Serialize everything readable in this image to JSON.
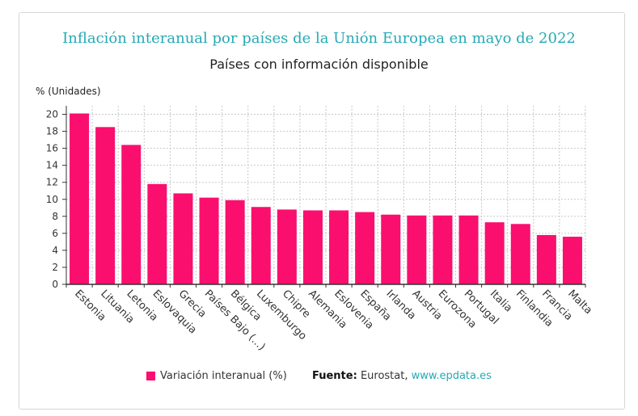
{
  "title": "Inflación interanual por países de la Unión Europea en mayo de 2022",
  "subtitle": "Países con información disponible",
  "footer": {
    "legend_label": "Variación interanual (%)",
    "source_label": "Fuente:",
    "source_text": "Eurostat,",
    "source_link": "www.epdata.es"
  },
  "colors": {
    "bar": "#fa0f6e",
    "title": "#26a9b5",
    "link": "#26a9b5"
  },
  "chart_data": {
    "type": "bar",
    "title": "Inflación interanual por países de la Unión Europea en mayo de 2022",
    "subtitle": "Países con información disponible",
    "ylabel": "% (Unidades)",
    "xlabel": "",
    "ylim": [
      0,
      21
    ],
    "yticks": [
      0,
      2,
      4,
      6,
      8,
      10,
      12,
      14,
      16,
      18,
      20
    ],
    "grid": true,
    "legend_position": "bottom",
    "categories": [
      "Estonia",
      "Lituania",
      "Letonia",
      "Eslovaquia",
      "Grecia",
      "Países Bajo (...)",
      "Bélgica",
      "Luxemburgo",
      "Chipre",
      "Alemania",
      "Eslovenia",
      "España",
      "Irlanda",
      "Austria",
      "Eurozona",
      "Portugal",
      "Italia",
      "Finlandia",
      "Francia",
      "Malta"
    ],
    "series": [
      {
        "name": "Variación interanual (%)",
        "values": [
          20.1,
          18.5,
          16.4,
          11.8,
          10.7,
          10.2,
          9.9,
          9.1,
          8.8,
          8.7,
          8.7,
          8.5,
          8.2,
          8.1,
          8.1,
          8.1,
          7.3,
          7.1,
          5.8,
          5.6
        ]
      }
    ]
  }
}
